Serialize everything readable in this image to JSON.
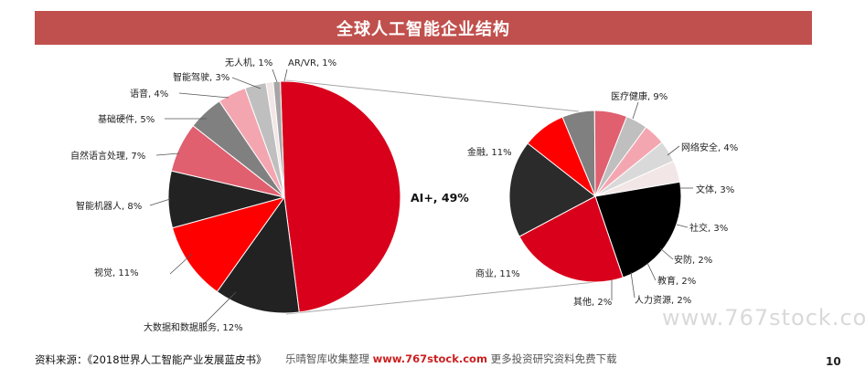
{
  "title": "全球人工智能企业结构",
  "source": "资料来源：《2018世界人工智能产业发展蓝皮书》",
  "notice": {
    "prefix": "乐晴智库收集整理",
    "site": "www.767stock.com",
    "suffix": "更多投资研究资料免费下载"
  },
  "watermark": "www.767stock.com",
  "page_number": "10",
  "colors": {
    "title_bar": "#c0504d",
    "dark_red": "#d9001b",
    "bright_red": "#ff0000",
    "black": "#222222",
    "rose": "#e06070",
    "gray": "#808080",
    "pink": "#f4a6b0",
    "light_gray": "#bfbfbf",
    "pale": "#f2e6e6"
  },
  "chart_data": [
    {
      "type": "pie",
      "title": "",
      "slices": [
        {
          "label": "AI+, 49%",
          "value": 49,
          "color": "#d9001b"
        },
        {
          "label": "大数据和数据服务, 12%",
          "value": 12,
          "color": "#222222"
        },
        {
          "label": "视觉, 11%",
          "value": 11,
          "color": "#ff0000"
        },
        {
          "label": "智能机器人, 8%",
          "value": 8,
          "color": "#222222"
        },
        {
          "label": "自然语言处理, 7%",
          "value": 7,
          "color": "#e06070"
        },
        {
          "label": "基础硬件, 5%",
          "value": 5,
          "color": "#808080"
        },
        {
          "label": "语音, 4%",
          "value": 4,
          "color": "#f4a6b0"
        },
        {
          "label": "智能驾驶, 3%",
          "value": 3,
          "color": "#bfbfbf"
        },
        {
          "label": "无人机, 1%",
          "value": 1,
          "color": "#f2e6e6"
        },
        {
          "label": "AR/VR, 1%",
          "value": 1,
          "color": "#a6a6a6"
        }
      ]
    },
    {
      "type": "pie",
      "title": "",
      "slices": [
        {
          "label": "医疗健康, 9%",
          "value": 9,
          "color": "#2b2b2b"
        },
        {
          "label": "网络安全, 4%",
          "value": 4,
          "color": "#ff0000"
        },
        {
          "label": "文体, 3%",
          "value": 3,
          "color": "#808080"
        },
        {
          "label": "社交, 3%",
          "value": 3,
          "color": "#e06070"
        },
        {
          "label": "安防, 2%",
          "value": 2,
          "color": "#bfbfbf"
        },
        {
          "label": "教育, 2%",
          "value": 2,
          "color": "#f4a6b0"
        },
        {
          "label": "人力资源, 2%",
          "value": 2,
          "color": "#d9d9d9"
        },
        {
          "label": "其他, 2%",
          "value": 2,
          "color": "#f2e6e6"
        },
        {
          "label": "商业, 11%",
          "value": 11,
          "color": "#000000"
        },
        {
          "label": "金融, 11%",
          "value": 11,
          "color": "#d9001b"
        }
      ]
    }
  ]
}
